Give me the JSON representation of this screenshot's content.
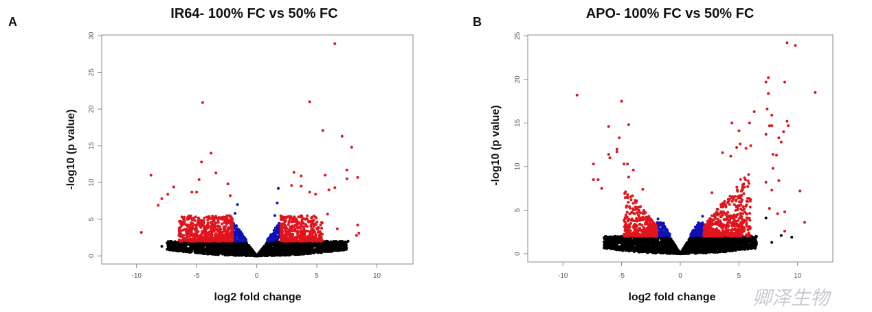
{
  "watermark": "卿泽生物",
  "colors": {
    "significant": "#e0141c",
    "fold_only_or_p_only": "#1010b8",
    "not_significant": "#000000",
    "frame": "#888888"
  },
  "chart_data": [
    {
      "panel_label": "A",
      "type": "scatter",
      "title": "IR64- 100% FC vs 50% FC",
      "xlabel": "log2 fold change",
      "ylabel": "-log10 (p value)",
      "xlim": [
        -12.9,
        13
      ],
      "ylim": [
        -1.1,
        30.1
      ],
      "xticks": [
        -10,
        -5,
        0,
        5,
        10
      ],
      "yticks": [
        0,
        5,
        10,
        15,
        20,
        25,
        30
      ],
      "grid": false,
      "thresholds": {
        "log2fc": 2,
        "neg_log10_p": 2
      },
      "points_red": [
        [
          -9.6,
          3.2
        ],
        [
          -8.8,
          11
        ],
        [
          -4.5,
          20.9
        ],
        [
          -3.8,
          14
        ],
        [
          -4.6,
          12.8
        ],
        [
          -3.4,
          11.3
        ],
        [
          -4.8,
          10.4
        ],
        [
          -6.9,
          9.4
        ],
        [
          -2.4,
          9.8
        ],
        [
          -7.4,
          8.4
        ],
        [
          -8.2,
          6.9
        ],
        [
          -7.9,
          7.8
        ],
        [
          -5.4,
          8.7
        ],
        [
          -5,
          8.7
        ],
        [
          -2.2,
          8.2
        ],
        [
          4.4,
          21
        ],
        [
          6.5,
          28.9
        ],
        [
          5.5,
          17.1
        ],
        [
          7.1,
          16.3
        ],
        [
          7.9,
          14.8
        ],
        [
          7.5,
          11.7
        ],
        [
          8.4,
          10.7
        ],
        [
          7.5,
          10.5
        ],
        [
          5.7,
          11
        ],
        [
          3.1,
          11.4
        ],
        [
          3.7,
          10.9
        ],
        [
          6,
          9
        ],
        [
          6.5,
          9.3
        ],
        [
          4.4,
          8.7
        ],
        [
          8.4,
          4.2
        ],
        [
          5.9,
          5.7
        ],
        [
          8.5,
          3.1
        ],
        [
          8.3,
          2.8
        ],
        [
          6.7,
          3.7
        ],
        [
          2.9,
          9.6
        ],
        [
          3.7,
          9.5
        ],
        [
          4.9,
          8.4
        ]
      ],
      "points_blue": [
        [
          1.8,
          9.2
        ],
        [
          -1.6,
          7
        ],
        [
          1.7,
          7.2
        ],
        [
          -1.8,
          5.8
        ],
        [
          1.5,
          5.5
        ]
      ],
      "points_black": [
        [
          -7.9,
          1.3
        ],
        [
          -6.9,
          1.2
        ],
        [
          -6.5,
          1.5
        ],
        [
          7.6,
          2
        ]
      ]
    },
    {
      "panel_label": "B",
      "type": "scatter",
      "title": "APO- 100% FC vs 50% FC",
      "xlabel": "log2 fold change",
      "ylabel": "-log10 (p value)",
      "xlim": [
        -13,
        13
      ],
      "ylim": [
        -0.94,
        25.1
      ],
      "xticks": [
        -10,
        -5,
        0,
        5,
        10
      ],
      "yticks": [
        0,
        5,
        10,
        15,
        20,
        25
      ],
      "grid": false,
      "thresholds": {
        "log2fc": 2,
        "neg_log10_p": 2
      },
      "points_red": [
        [
          -8.8,
          18.2
        ],
        [
          -5,
          17.5
        ],
        [
          -4.4,
          14.8
        ],
        [
          -6.1,
          14.6
        ],
        [
          -5.2,
          13.3
        ],
        [
          -5.4,
          12
        ],
        [
          -5.4,
          11.7
        ],
        [
          -6.1,
          11.4
        ],
        [
          -6,
          11
        ],
        [
          -7.4,
          10.3
        ],
        [
          -7.4,
          8.5
        ],
        [
          -7,
          8.5
        ],
        [
          -4.8,
          10.3
        ],
        [
          -4.5,
          10.3
        ],
        [
          -4,
          9.6
        ],
        [
          -4.4,
          8.8
        ],
        [
          -3.2,
          7.4
        ],
        [
          -6.7,
          7.5
        ],
        [
          9.1,
          24.2
        ],
        [
          9.8,
          23.9
        ],
        [
          7.5,
          20.2
        ],
        [
          7.3,
          19.7
        ],
        [
          8.9,
          19.7
        ],
        [
          11.5,
          18.5
        ],
        [
          7.5,
          18.4
        ],
        [
          7.4,
          16.6
        ],
        [
          6.3,
          16.3
        ],
        [
          7.8,
          15.9
        ],
        [
          4.4,
          15
        ],
        [
          5.9,
          15
        ],
        [
          9.1,
          15.2
        ],
        [
          9.2,
          14.7
        ],
        [
          7.6,
          14.7
        ],
        [
          7.8,
          14.7
        ],
        [
          8.8,
          14
        ],
        [
          5,
          14.1
        ],
        [
          7.3,
          13.7
        ],
        [
          8.4,
          13.3
        ],
        [
          8.6,
          12.8
        ],
        [
          10.2,
          7.2
        ],
        [
          10.6,
          3.6
        ],
        [
          8.9,
          2.6
        ],
        [
          8.9,
          4.8
        ],
        [
          8.3,
          4.6
        ],
        [
          3.6,
          11.6
        ],
        [
          4.3,
          11.2
        ],
        [
          4.8,
          12.2
        ],
        [
          5.1,
          12.6
        ],
        [
          5.6,
          12.1
        ],
        [
          6,
          12.4
        ],
        [
          7.9,
          11.4
        ],
        [
          8.2,
          11.3
        ],
        [
          7.9,
          9.8
        ],
        [
          7.3,
          8.2
        ],
        [
          7.8,
          7.3
        ],
        [
          8.4,
          8.4
        ],
        [
          7.6,
          5.2
        ],
        [
          2.7,
          7
        ]
      ],
      "points_blue": [
        [
          1.9,
          4.3
        ],
        [
          -1.9,
          4
        ]
      ],
      "points_black": [
        [
          9.5,
          1.9
        ],
        [
          7.3,
          4.1
        ],
        [
          -5.4,
          0.9
        ],
        [
          7.8,
          1.3
        ],
        [
          8.6,
          2.1
        ]
      ]
    }
  ]
}
